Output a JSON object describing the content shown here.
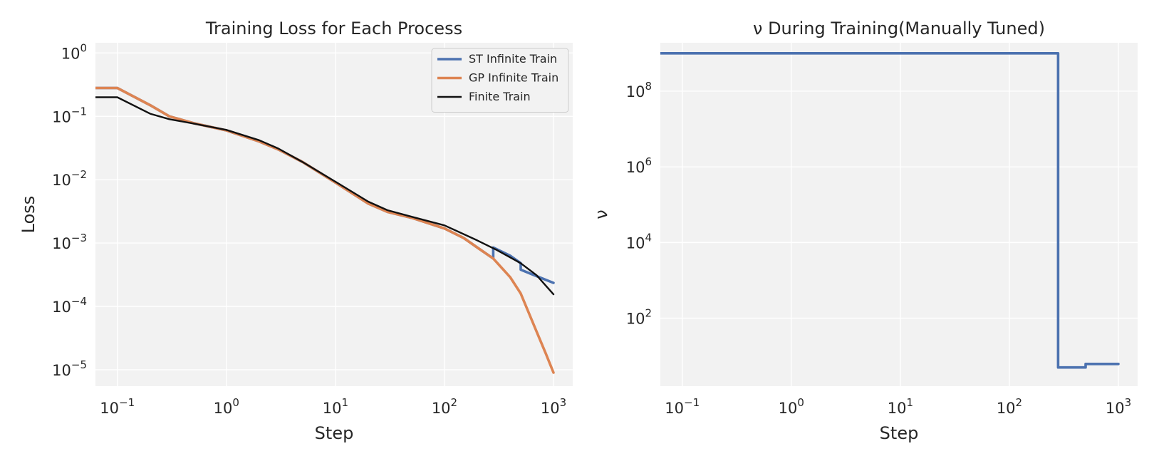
{
  "chart_data": [
    {
      "type": "line",
      "title": "Training Loss for Each Process",
      "xlabel": "Step",
      "ylabel": "Loss",
      "xscale": "log",
      "yscale": "log",
      "xlim": [
        0.063,
        1500
      ],
      "ylim": [
        5.5e-06,
        1.45
      ],
      "xticks": [
        0.1,
        1,
        10,
        100,
        1000
      ],
      "xtick_labels": [
        {
          "base": "10",
          "exp": "−1"
        },
        {
          "base": "10",
          "exp": "0"
        },
        {
          "base": "10",
          "exp": "1"
        },
        {
          "base": "10",
          "exp": "2"
        },
        {
          "base": "10",
          "exp": "3"
        }
      ],
      "yticks": [
        1e-05,
        0.0001,
        0.001,
        0.01,
        0.1,
        1
      ],
      "ytick_labels": [
        {
          "base": "10",
          "exp": "−5"
        },
        {
          "base": "10",
          "exp": "−4"
        },
        {
          "base": "10",
          "exp": "−3"
        },
        {
          "base": "10",
          "exp": "−2"
        },
        {
          "base": "10",
          "exp": "−1"
        },
        {
          "base": "10",
          "exp": "0"
        }
      ],
      "grid": true,
      "legend_position": "top-right",
      "series": [
        {
          "name": "ST Infinite Train",
          "color": "#4c72b0",
          "points": [
            [
              0.063,
              0.28
            ],
            [
              0.1,
              0.28
            ],
            [
              0.2,
              0.15
            ],
            [
              0.3,
              0.1
            ],
            [
              0.5,
              0.078
            ],
            [
              1,
              0.06
            ],
            [
              2,
              0.04
            ],
            [
              3,
              0.03
            ],
            [
              5,
              0.019
            ],
            [
              10,
              0.009
            ],
            [
              20,
              0.0042
            ],
            [
              30,
              0.0031
            ],
            [
              50,
              0.0025
            ],
            [
              100,
              0.0017
            ],
            [
              150,
              0.0012
            ],
            [
              200,
              0.00085
            ],
            [
              280,
              0.00057
            ],
            [
              280,
              0.00085
            ],
            [
              400,
              0.00063
            ],
            [
              500,
              0.00048
            ],
            [
              500,
              0.00038
            ],
            [
              700,
              0.0003
            ],
            [
              1000,
              0.000235
            ]
          ]
        },
        {
          "name": "GP Infinite Train",
          "color": "#dd8452",
          "points": [
            [
              0.063,
              0.28
            ],
            [
              0.1,
              0.28
            ],
            [
              0.2,
              0.15
            ],
            [
              0.3,
              0.1
            ],
            [
              0.5,
              0.078
            ],
            [
              1,
              0.06
            ],
            [
              2,
              0.04
            ],
            [
              3,
              0.03
            ],
            [
              5,
              0.019
            ],
            [
              10,
              0.009
            ],
            [
              20,
              0.0042
            ],
            [
              30,
              0.0031
            ],
            [
              50,
              0.0025
            ],
            [
              100,
              0.0017
            ],
            [
              150,
              0.0012
            ],
            [
              200,
              0.00085
            ],
            [
              280,
              0.00057
            ],
            [
              400,
              0.00029
            ],
            [
              500,
              0.00016
            ],
            [
              700,
              4e-05
            ],
            [
              850,
              1.8e-05
            ],
            [
              1000,
              9e-06
            ]
          ]
        },
        {
          "name": "Finite Train",
          "color": "#111111",
          "points": [
            [
              0.063,
              0.2
            ],
            [
              0.1,
              0.2
            ],
            [
              0.2,
              0.11
            ],
            [
              0.3,
              0.09
            ],
            [
              0.5,
              0.077
            ],
            [
              1,
              0.061
            ],
            [
              2,
              0.042
            ],
            [
              3,
              0.031
            ],
            [
              5,
              0.019
            ],
            [
              10,
              0.0093
            ],
            [
              20,
              0.0045
            ],
            [
              30,
              0.0033
            ],
            [
              50,
              0.0026
            ],
            [
              100,
              0.0019
            ],
            [
              200,
              0.0011
            ],
            [
              300,
              0.00078
            ],
            [
              500,
              0.00048
            ],
            [
              700,
              0.00031
            ],
            [
              1000,
              0.000155
            ]
          ]
        }
      ]
    },
    {
      "type": "line",
      "title": "ν During Training(Manually Tuned)",
      "xlabel": "Step",
      "ylabel": "ν",
      "xscale": "log",
      "yscale": "log",
      "xlim": [
        0.063,
        1500
      ],
      "ylim": [
        1.6,
        1900000000.0
      ],
      "xticks": [
        0.1,
        1,
        10,
        100,
        1000
      ],
      "xtick_labels": [
        {
          "base": "10",
          "exp": "−1"
        },
        {
          "base": "10",
          "exp": "0"
        },
        {
          "base": "10",
          "exp": "1"
        },
        {
          "base": "10",
          "exp": "2"
        },
        {
          "base": "10",
          "exp": "3"
        }
      ],
      "yticks": [
        100,
        10000,
        1000000,
        100000000
      ],
      "ytick_labels": [
        {
          "base": "10",
          "exp": "2"
        },
        {
          "base": "10",
          "exp": "4"
        },
        {
          "base": "10",
          "exp": "6"
        },
        {
          "base": "10",
          "exp": "8"
        }
      ],
      "grid": true,
      "series": [
        {
          "color": "#4c72b0",
          "points": [
            [
              0.063,
              1000000000
            ],
            [
              280,
              1000000000
            ],
            [
              280,
              5
            ],
            [
              500,
              5
            ],
            [
              500,
              6.2
            ],
            [
              1000,
              6.2
            ]
          ]
        }
      ]
    }
  ]
}
